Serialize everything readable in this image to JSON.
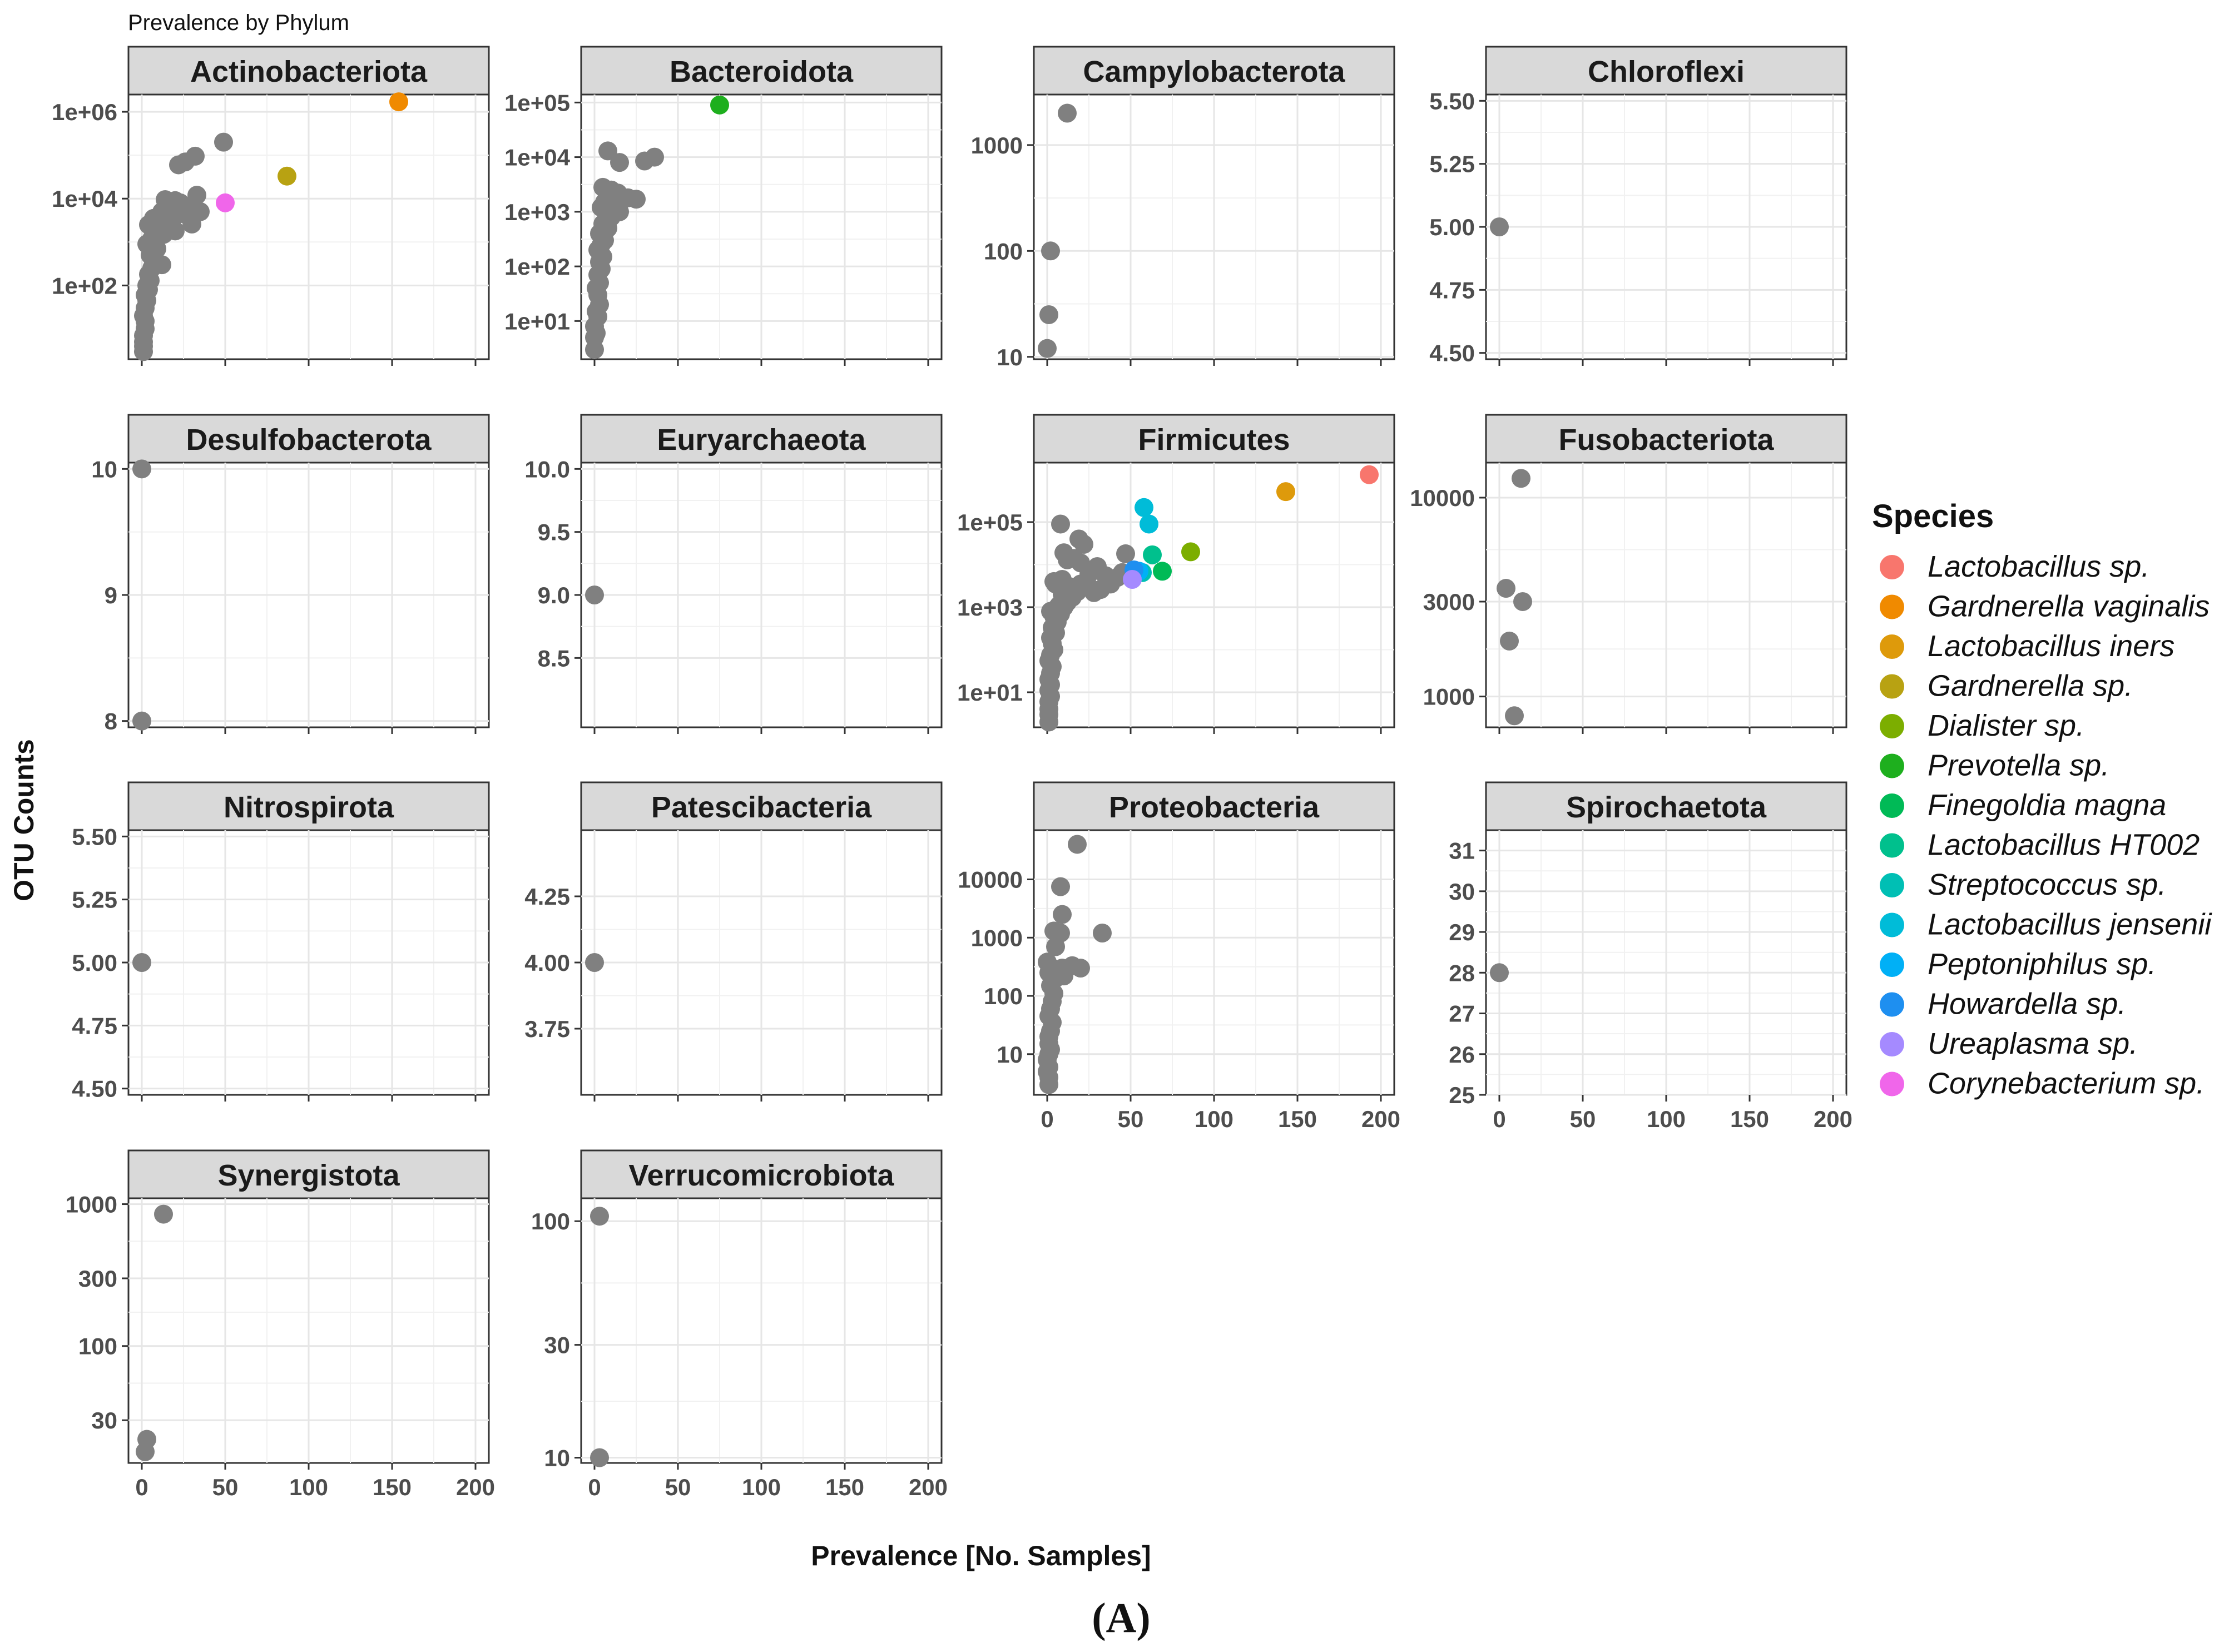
{
  "figure": {
    "title": "Prevalence by Phylum",
    "xlabel": "Prevalence [No. Samples]",
    "ylabel": "OTU Counts",
    "panel_label": "(A)",
    "legend_title": "Species"
  },
  "legend": [
    {
      "name": "Lactobacillus sp.",
      "color": "#F8766D"
    },
    {
      "name": "Gardnerella vaginalis",
      "color": "#F08A00"
    },
    {
      "name": "Lactobacillus iners",
      "color": "#DE9A0B"
    },
    {
      "name": "Gardnerella sp.",
      "color": "#B8A212"
    },
    {
      "name": "Dialister sp.",
      "color": "#7CAE00"
    },
    {
      "name": "Prevotella sp.",
      "color": "#1EAF1E"
    },
    {
      "name": "Finegoldia magna",
      "color": "#00BA56"
    },
    {
      "name": "Lactobacillus HT002",
      "color": "#00C08D"
    },
    {
      "name": "Streptococcus sp.",
      "color": "#00BFB4"
    },
    {
      "name": "Lactobacillus jensenii",
      "color": "#00BCD8"
    },
    {
      "name": "Peptoniphilus sp.",
      "color": "#00B0F6"
    },
    {
      "name": "Howardella sp.",
      "color": "#1E8FF0"
    },
    {
      "name": "Ureaplasma sp.",
      "color": "#A58AFF"
    },
    {
      "name": "Corynebacterium sp.",
      "color": "#F066EA"
    }
  ],
  "chart_data": {
    "type": "scatter",
    "title": "Prevalence by Phylum",
    "xlabel": "Prevalence [No. Samples]",
    "ylabel": "OTU Counts",
    "xlim": [
      -8,
      208
    ],
    "xticks": [
      0,
      50,
      100,
      150,
      200
    ],
    "xtick_labels": [
      "0",
      "50",
      "100",
      "150",
      "200"
    ],
    "grid": true,
    "legend_position": "right",
    "default_point_color": "#808080",
    "facets": [
      {
        "name": "Actinobacteriota",
        "scale": "log",
        "ylim": [
          2,
          2500000
        ],
        "yticks": [
          100,
          10000,
          1000000
        ],
        "ytick_labels": [
          "1e+02",
          "1e+04",
          "1e+06"
        ],
        "points": [
          [
            1,
            3
          ],
          [
            1,
            4
          ],
          [
            1,
            5
          ],
          [
            1,
            7
          ],
          [
            2,
            10
          ],
          [
            2,
            15
          ],
          [
            1,
            20
          ],
          [
            2,
            30
          ],
          [
            3,
            45
          ],
          [
            2,
            60
          ],
          [
            4,
            80
          ],
          [
            3,
            100
          ],
          [
            5,
            130
          ],
          [
            4,
            180
          ],
          [
            6,
            250
          ],
          [
            7,
            350
          ],
          [
            5,
            500
          ],
          [
            9,
            700
          ],
          [
            12,
            300
          ],
          [
            3,
            900
          ],
          [
            6,
            1200
          ],
          [
            8,
            1600
          ],
          [
            10,
            2000
          ],
          [
            13,
            1500
          ],
          [
            15,
            2500
          ],
          [
            4,
            2500
          ],
          [
            7,
            3500
          ],
          [
            18,
            3000
          ],
          [
            20,
            1800
          ],
          [
            12,
            5000
          ],
          [
            17,
            6000
          ],
          [
            23,
            8000
          ],
          [
            25,
            4500
          ],
          [
            30,
            2600
          ],
          [
            28,
            6000
          ],
          [
            20,
            9000
          ],
          [
            14,
            9500
          ],
          [
            35,
            5000
          ],
          [
            33,
            12000
          ],
          [
            22,
            60000
          ],
          [
            26,
            70000
          ],
          [
            32,
            95000
          ],
          [
            49,
            200000
          ]
        ],
        "highlights": [
          {
            "species": "Gardnerella vaginalis",
            "x": 154,
            "y": 1700000
          },
          {
            "species": "Gardnerella sp.",
            "x": 87,
            "y": 33000
          },
          {
            "species": "Corynebacterium sp.",
            "x": 50,
            "y": 8000
          }
        ]
      },
      {
        "name": "Bacteroidota",
        "scale": "log",
        "ylim": [
          2,
          140000
        ],
        "yticks": [
          10,
          100,
          1000,
          10000,
          100000
        ],
        "ytick_labels": [
          "1e+01",
          "1e+02",
          "1e+03",
          "1e+04",
          "1e+05"
        ],
        "points": [
          [
            0,
            3
          ],
          [
            0,
            5
          ],
          [
            1,
            6
          ],
          [
            0,
            8
          ],
          [
            2,
            12
          ],
          [
            1,
            15
          ],
          [
            3,
            20
          ],
          [
            2,
            30
          ],
          [
            1,
            40
          ],
          [
            3,
            50
          ],
          [
            2,
            70
          ],
          [
            4,
            90
          ],
          [
            3,
            120
          ],
          [
            5,
            150
          ],
          [
            2,
            200
          ],
          [
            4,
            250
          ],
          [
            6,
            300
          ],
          [
            3,
            400
          ],
          [
            5,
            600
          ],
          [
            8,
            500
          ],
          [
            10,
            800
          ],
          [
            4,
            1200
          ],
          [
            6,
            1500
          ],
          [
            12,
            1300
          ],
          [
            15,
            1000
          ],
          [
            9,
            2000
          ],
          [
            20,
            1800
          ],
          [
            25,
            1700
          ],
          [
            14,
            2200
          ],
          [
            10,
            2500
          ],
          [
            5,
            2800
          ],
          [
            8,
            13000
          ],
          [
            15,
            8000
          ],
          [
            30,
            8500
          ],
          [
            36,
            10000
          ]
        ],
        "highlights": [
          {
            "species": "Prevotella sp.",
            "x": 75,
            "y": 90000
          }
        ]
      },
      {
        "name": "Campylobacterota",
        "scale": "log",
        "ylim": [
          9.5,
          3000
        ],
        "yticks": [
          10,
          100,
          1000
        ],
        "ytick_labels": [
          "10",
          "100",
          "1000"
        ],
        "points": [
          [
            0,
            12
          ],
          [
            1,
            25
          ],
          [
            2,
            100
          ],
          [
            12,
            2000
          ]
        ],
        "highlights": []
      },
      {
        "name": "Chloroflexi",
        "scale": "linear",
        "ylim": [
          4.475,
          5.525
        ],
        "yticks": [
          4.5,
          4.75,
          5,
          5.25,
          5.5
        ],
        "ytick_labels": [
          "4.50",
          "4.75",
          "5.00",
          "5.25",
          "5.50"
        ],
        "points": [
          [
            0,
            5
          ]
        ],
        "highlights": []
      },
      {
        "name": "Desulfobacterota",
        "scale": "linear",
        "ylim": [
          7.95,
          10.05
        ],
        "yticks": [
          8,
          9,
          10
        ],
        "ytick_labels": [
          "8",
          "9",
          "10"
        ],
        "points": [
          [
            0,
            10
          ],
          [
            0,
            8
          ]
        ],
        "highlights": []
      },
      {
        "name": "Euryarchaeota",
        "scale": "linear",
        "ylim": [
          7.95,
          10.05
        ],
        "yticks": [
          8.5,
          9,
          9.5,
          10
        ],
        "ytick_labels": [
          "8.5",
          "9.0",
          "9.5",
          "10.0"
        ],
        "points": [
          [
            0,
            9
          ]
        ],
        "highlights": []
      },
      {
        "name": "Firmicutes",
        "scale": "log",
        "ylim": [
          1.5,
          2500000
        ],
        "yticks": [
          10,
          1000,
          100000
        ],
        "ytick_labels": [
          "1e+01",
          "1e+03",
          "1e+05"
        ],
        "points": [
          [
            1,
            2
          ],
          [
            1,
            3
          ],
          [
            1,
            4
          ],
          [
            1,
            6
          ],
          [
            2,
            8
          ],
          [
            1,
            11
          ],
          [
            2,
            15
          ],
          [
            1,
            20
          ],
          [
            2,
            28
          ],
          [
            3,
            40
          ],
          [
            1,
            55
          ],
          [
            2,
            75
          ],
          [
            4,
            100
          ],
          [
            3,
            140
          ],
          [
            2,
            190
          ],
          [
            5,
            250
          ],
          [
            3,
            330
          ],
          [
            6,
            450
          ],
          [
            4,
            600
          ],
          [
            8,
            700
          ],
          [
            2,
            800
          ],
          [
            5,
            900
          ],
          [
            10,
            1000
          ],
          [
            7,
            1100
          ],
          [
            12,
            1300
          ],
          [
            15,
            1700
          ],
          [
            9,
            2000
          ],
          [
            18,
            2300
          ],
          [
            14,
            3000
          ],
          [
            20,
            3500
          ],
          [
            25,
            3000
          ],
          [
            28,
            2200
          ],
          [
            32,
            2600
          ],
          [
            38,
            3500
          ],
          [
            42,
            5000
          ],
          [
            35,
            5500
          ],
          [
            30,
            9000
          ],
          [
            45,
            6500
          ],
          [
            20,
            11000
          ],
          [
            12,
            13000
          ],
          [
            5,
            3500
          ],
          [
            4,
            4000
          ],
          [
            9,
            4500
          ],
          [
            16,
            14000
          ],
          [
            25,
            6000
          ],
          [
            47,
            18000
          ],
          [
            10,
            19000
          ],
          [
            22,
            30000
          ],
          [
            8,
            90000
          ],
          [
            19,
            40000
          ]
        ],
        "highlights": [
          {
            "species": "Lactobacillus sp.",
            "x": 193,
            "y": 1300000
          },
          {
            "species": "Lactobacillus iners",
            "x": 143,
            "y": 520000
          },
          {
            "species": "Dialister sp.",
            "x": 86,
            "y": 20000
          },
          {
            "species": "Finegoldia magna",
            "x": 69,
            "y": 7000
          },
          {
            "species": "Lactobacillus HT002",
            "x": 63,
            "y": 17000
          },
          {
            "species": "Streptococcus sp.",
            "x": 57,
            "y": 6500
          },
          {
            "species": "Lactobacillus jensenii",
            "x": 58,
            "y": 220000
          },
          {
            "species": "Lactobacillus jensenii",
            "x": 61,
            "y": 90000
          },
          {
            "species": "Peptoniphilus sp.",
            "x": 55,
            "y": 7000
          },
          {
            "species": "Howardella sp.",
            "x": 52,
            "y": 7500
          },
          {
            "species": "Ureaplasma sp.",
            "x": 51,
            "y": 4500
          }
        ]
      },
      {
        "name": "Fusobacteriota",
        "scale": "log",
        "ylim": [
          700,
          15000
        ],
        "yticks": [
          1000,
          3000,
          10000
        ],
        "ytick_labels": [
          "1000",
          "3000",
          "10000"
        ],
        "points": [
          [
            13,
            12500
          ],
          [
            4,
            3500
          ],
          [
            14,
            3000
          ],
          [
            6,
            1900
          ],
          [
            9,
            800
          ]
        ],
        "highlights": []
      },
      {
        "name": "Nitrospirota",
        "scale": "linear",
        "ylim": [
          4.475,
          5.525
        ],
        "yticks": [
          4.5,
          4.75,
          5,
          5.25,
          5.5
        ],
        "ytick_labels": [
          "4.50",
          "4.75",
          "5.00",
          "5.25",
          "5.50"
        ],
        "points": [
          [
            0,
            5
          ]
        ],
        "highlights": []
      },
      {
        "name": "Patescibacteria",
        "scale": "linear",
        "ylim": [
          3.5,
          4.5
        ],
        "yticks": [
          3.75,
          4,
          4.25
        ],
        "ytick_labels": [
          "3.75",
          "4.00",
          "4.25"
        ],
        "points": [
          [
            0,
            4
          ]
        ],
        "highlights": []
      },
      {
        "name": "Proteobacteria",
        "scale": "log",
        "ylim": [
          2,
          70000
        ],
        "yticks": [
          10,
          100,
          1000,
          10000
        ],
        "ytick_labels": [
          "10",
          "100",
          "1000",
          "10000"
        ],
        "points": [
          [
            1,
            3
          ],
          [
            1,
            4
          ],
          [
            0,
            5
          ],
          [
            1,
            6
          ],
          [
            0,
            8
          ],
          [
            1,
            10
          ],
          [
            2,
            12
          ],
          [
            1,
            15
          ],
          [
            1,
            20
          ],
          [
            2,
            25
          ],
          [
            3,
            35
          ],
          [
            1,
            45
          ],
          [
            2,
            60
          ],
          [
            3,
            80
          ],
          [
            4,
            110
          ],
          [
            2,
            150
          ],
          [
            5,
            200
          ],
          [
            1,
            250
          ],
          [
            3,
            300
          ],
          [
            6,
            270
          ],
          [
            9,
            300
          ],
          [
            15,
            330
          ],
          [
            20,
            300
          ],
          [
            10,
            220
          ],
          [
            0,
            380
          ],
          [
            5,
            700
          ],
          [
            8,
            1200
          ],
          [
            4,
            1300
          ],
          [
            9,
            2500
          ],
          [
            8,
            7500
          ],
          [
            33,
            1200
          ],
          [
            18,
            40000
          ]
        ],
        "highlights": []
      },
      {
        "name": "Spirochaetota",
        "scale": "linear",
        "ylim": [
          25,
          31.5
        ],
        "yticks": [
          25,
          26,
          27,
          28,
          29,
          30,
          31
        ],
        "ytick_labels": [
          "25",
          "26",
          "27",
          "28",
          "29",
          "30",
          "31"
        ],
        "points": [
          [
            0,
            28
          ]
        ],
        "highlights": []
      },
      {
        "name": "Synergistota",
        "scale": "log",
        "ylim": [
          15,
          1100
        ],
        "yticks": [
          30,
          100,
          300,
          1000
        ],
        "ytick_labels": [
          "30",
          "100",
          "300",
          "1000"
        ],
        "points": [
          [
            13,
            850
          ],
          [
            3,
            22
          ],
          [
            2,
            18
          ]
        ],
        "highlights": []
      },
      {
        "name": "Verrucomicrobiota",
        "scale": "log",
        "ylim": [
          9.5,
          125
        ],
        "yticks": [
          10,
          30,
          100
        ],
        "ytick_labels": [
          "10",
          "30",
          "100"
        ],
        "points": [
          [
            3,
            105
          ],
          [
            3,
            10
          ]
        ],
        "highlights": []
      }
    ]
  }
}
